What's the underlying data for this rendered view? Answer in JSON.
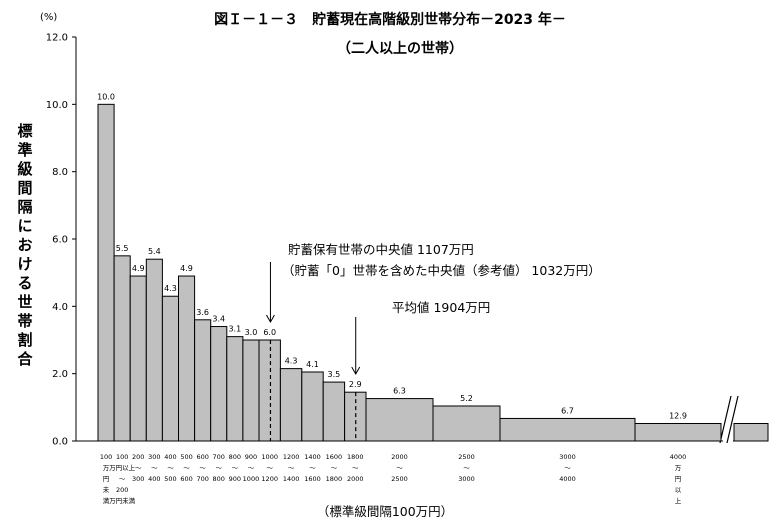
{
  "chart_data": {
    "type": "bar",
    "title": "図Ｉ－１－３　貯蓄現在高階級別世帯分布－2023 年－",
    "subtitle": "（二人以上の世帯）",
    "y_unit": "(%)",
    "ylabel": "標準級間隔における世帯割合",
    "xlabel": "（標準級間隔100万円）",
    "ylim": [
      0,
      12
    ],
    "yticks": [
      "0.0",
      "2.0",
      "4.0",
      "6.0",
      "8.0",
      "10.0",
      "12.0"
    ],
    "grid": false,
    "categories": [
      {
        "lo": 0,
        "hi": 100,
        "lines": [
          "100",
          "万",
          "円",
          "未",
          "満"
        ]
      },
      {
        "lo": 100,
        "hi": 200,
        "lines": [
          "100",
          "万円以上",
          "～",
          "200",
          "万円未満"
        ]
      },
      {
        "lo": 200,
        "hi": 300,
        "lines": [
          "200",
          "～",
          "300"
        ]
      },
      {
        "lo": 300,
        "hi": 400,
        "lines": [
          "300",
          "～",
          "400"
        ]
      },
      {
        "lo": 400,
        "hi": 500,
        "lines": [
          "400",
          "～",
          "500"
        ]
      },
      {
        "lo": 500,
        "hi": 600,
        "lines": [
          "500",
          "～",
          "600"
        ]
      },
      {
        "lo": 600,
        "hi": 700,
        "lines": [
          "600",
          "～",
          "700"
        ]
      },
      {
        "lo": 700,
        "hi": 800,
        "lines": [
          "700",
          "～",
          "800"
        ]
      },
      {
        "lo": 800,
        "hi": 900,
        "lines": [
          "800",
          "～",
          "900"
        ]
      },
      {
        "lo": 900,
        "hi": 1000,
        "lines": [
          "900",
          "～",
          "1000"
        ]
      },
      {
        "lo": 1000,
        "hi": 1200,
        "lines": [
          "1000",
          "～",
          "1200"
        ]
      },
      {
        "lo": 1200,
        "hi": 1400,
        "lines": [
          "1200",
          "～",
          "1400"
        ]
      },
      {
        "lo": 1400,
        "hi": 1600,
        "lines": [
          "1400",
          "～",
          "1600"
        ]
      },
      {
        "lo": 1600,
        "hi": 1800,
        "lines": [
          "1600",
          "～",
          "1800"
        ]
      },
      {
        "lo": 1800,
        "hi": 2000,
        "lines": [
          "1800",
          "～",
          "2000"
        ]
      },
      {
        "lo": 2000,
        "hi": 2500,
        "lines": [
          "2000",
          "～",
          "2500"
        ]
      },
      {
        "lo": 2500,
        "hi": 3000,
        "lines": [
          "2500",
          "～",
          "3000"
        ]
      },
      {
        "lo": 3000,
        "hi": 4000,
        "lines": [
          "3000",
          "～",
          "4000"
        ]
      },
      {
        "lo": 4000,
        "hi": null,
        "lines": [
          "4000",
          "万",
          "円",
          "以",
          "上"
        ]
      }
    ],
    "series": [
      {
        "values": [
          10.0,
          5.5,
          4.9,
          5.4,
          4.3,
          4.9,
          3.6,
          3.4,
          3.1,
          3.0,
          6.0,
          4.3,
          4.1,
          3.5,
          2.9,
          6.3,
          5.2,
          6.7,
          12.9
        ],
        "heights": [
          10.0,
          5.5,
          4.9,
          5.4,
          4.3,
          4.9,
          3.6,
          3.4,
          3.1,
          3.0,
          3.0,
          2.15,
          2.05,
          1.75,
          1.45,
          1.26,
          1.04,
          0.67,
          0.52
        ]
      }
    ],
    "annotations": [
      {
        "text": "貯蓄保有世帯の中央値 1107万円",
        "x": 1107
      },
      {
        "text": "（貯蓄「0」世帯を含めた中央値（参考値） 1032万円）"
      },
      {
        "text": "平均値 1904万円",
        "x": 1904
      }
    ],
    "colors": {
      "bar": "#c0c0c0",
      "stroke": "#000000"
    }
  }
}
